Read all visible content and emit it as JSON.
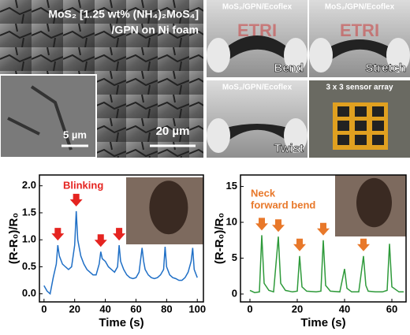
{
  "sem": {
    "title_line1": "MoS₂ [1.25 wt% (NH₄)₂MoS₄]",
    "title_line2": "/GPN on Ni foam",
    "scale_inset": "5 µm",
    "scale_main": "20 µm"
  },
  "photos": [
    {
      "label": "MoS₂/GPN/Ecoflex",
      "caption": "Bend",
      "backdrop": "ETRI"
    },
    {
      "label": "MoS₂/GPN/Ecoflex",
      "caption": "Stretch",
      "backdrop": "ETRI"
    },
    {
      "label": "MoS₂/GPN/Ecoflex",
      "caption": "Twist"
    },
    {
      "label": "3 x 3 sensor array"
    }
  ],
  "chart_data": [
    {
      "type": "line",
      "xlabel": "Time (s)",
      "ylabel": "(R-R₀)/R₀",
      "annotation": [
        "Blinking"
      ],
      "annotation_color": "#e52420",
      "xlim": [
        -3,
        104
      ],
      "ylim": [
        -0.15,
        2.2
      ],
      "xticks": [
        0,
        20,
        40,
        60,
        80,
        100
      ],
      "yticks": [
        {
          "value": 0,
          "label": "0.0"
        },
        {
          "value": 0.5,
          "label": "0.5"
        },
        {
          "value": 1,
          "label": "1.0"
        },
        {
          "value": 1.5,
          "label": "1.5"
        },
        {
          "value": 2,
          "label": "2.0"
        }
      ],
      "x": [
        0,
        2,
        4,
        6,
        8,
        9,
        10,
        12,
        14,
        16,
        18,
        20,
        21,
        22,
        24,
        26,
        28,
        30,
        32,
        34,
        36,
        37,
        38,
        40,
        42,
        44,
        46,
        48,
        49,
        50,
        52,
        54,
        56,
        58,
        60,
        62,
        64,
        65,
        66,
        68,
        70,
        72,
        74,
        76,
        78,
        79,
        80,
        82,
        84,
        86,
        88,
        90,
        92,
        94,
        96,
        97,
        98,
        100
      ],
      "series": [
        {
          "color": "#1f6fc6",
          "values": [
            0.15,
            0.05,
            0.0,
            0.3,
            0.55,
            0.9,
            0.7,
            0.55,
            0.5,
            0.45,
            0.5,
            0.9,
            1.53,
            1.0,
            0.7,
            0.55,
            0.45,
            0.4,
            0.35,
            0.35,
            0.55,
            0.78,
            0.65,
            0.6,
            0.5,
            0.45,
            0.4,
            0.5,
            0.9,
            0.6,
            0.45,
            0.35,
            0.3,
            0.28,
            0.3,
            0.4,
            0.85,
            0.6,
            0.45,
            0.35,
            0.3,
            0.28,
            0.3,
            0.35,
            0.45,
            0.87,
            0.5,
            0.35,
            0.3,
            0.28,
            0.25,
            0.25,
            0.3,
            0.4,
            0.6,
            0.85,
            0.45,
            0.3
          ]
        }
      ]
    },
    {
      "type": "line",
      "xlabel": "Time (s)",
      "ylabel": "(R-R₀)/R₀",
      "annotation": [
        "Neck",
        "forward bend"
      ],
      "annotation_color": "#e8782a",
      "xlim": [
        -4,
        66
      ],
      "ylim": [
        -1.1,
        16.6
      ],
      "xticks": [
        0,
        20,
        40,
        60
      ],
      "yticks": [
        0,
        5,
        10,
        15
      ],
      "x": [
        0,
        2,
        4,
        5,
        6,
        8,
        10,
        12,
        13,
        15,
        18,
        20,
        21,
        22,
        24,
        28,
        30,
        31,
        32,
        34,
        38,
        40,
        41,
        43,
        46,
        48,
        49,
        50,
        53,
        56,
        58,
        59,
        60,
        63,
        65
      ],
      "series": [
        {
          "color": "#2e9a3a",
          "values": [
            0.5,
            0.2,
            0.3,
            8.2,
            1.5,
            0.5,
            0.3,
            8,
            1.5,
            0.5,
            0.3,
            0.4,
            5.3,
            1,
            0.4,
            0.3,
            0.4,
            7.5,
            1.2,
            0.4,
            0.3,
            3.5,
            0.8,
            0.3,
            0.3,
            5.3,
            1.2,
            0.4,
            0.3,
            0.3,
            0.5,
            7,
            1,
            0.3,
            0.3
          ]
        }
      ]
    }
  ]
}
